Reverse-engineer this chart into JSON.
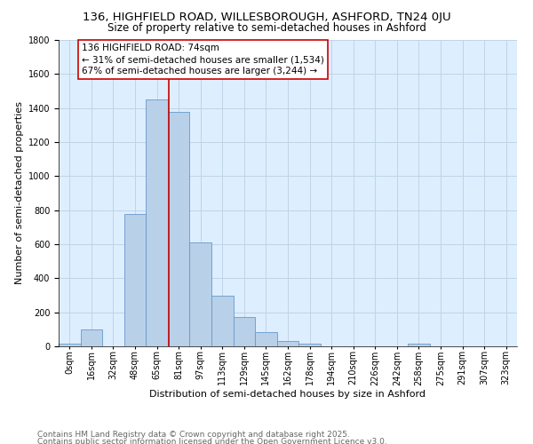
{
  "title1": "136, HIGHFIELD ROAD, WILLESBOROUGH, ASHFORD, TN24 0JU",
  "title2": "Size of property relative to semi-detached houses in Ashford",
  "xlabel": "Distribution of semi-detached houses by size in Ashford",
  "ylabel": "Number of semi-detached properties",
  "bin_labels": [
    "0sqm",
    "16sqm",
    "32sqm",
    "48sqm",
    "65sqm",
    "81sqm",
    "97sqm",
    "113sqm",
    "129sqm",
    "145sqm",
    "162sqm",
    "178sqm",
    "194sqm",
    "210sqm",
    "226sqm",
    "242sqm",
    "258sqm",
    "275sqm",
    "291sqm",
    "307sqm",
    "323sqm"
  ],
  "bar_heights": [
    15,
    100,
    0,
    775,
    1450,
    1375,
    610,
    300,
    170,
    85,
    30,
    18,
    0,
    0,
    0,
    0,
    18,
    0,
    0,
    0,
    0
  ],
  "bar_color": "#b8d0e8",
  "bar_edge_color": "#6699cc",
  "annotation_title": "136 HIGHFIELD ROAD: 74sqm",
  "annotation_line1": "← 31% of semi-detached houses are smaller (1,534)",
  "annotation_line2": "67% of semi-detached houses are larger (3,244) →",
  "annotation_box_color": "#ffffff",
  "annotation_border_color": "#cc0000",
  "vline_color": "#cc0000",
  "ylim": [
    0,
    1800
  ],
  "footnote1": "Contains HM Land Registry data © Crown copyright and database right 2025.",
  "footnote2": "Contains public sector information licensed under the Open Government Licence v3.0.",
  "background_color": "#ffffff",
  "plot_bg_color": "#ddeeff",
  "grid_color": "#c0d4e8",
  "title_fontsize": 9.5,
  "subtitle_fontsize": 8.5,
  "axis_label_fontsize": 8,
  "tick_fontsize": 7,
  "annotation_fontsize": 7.5,
  "footnote_fontsize": 6.5
}
